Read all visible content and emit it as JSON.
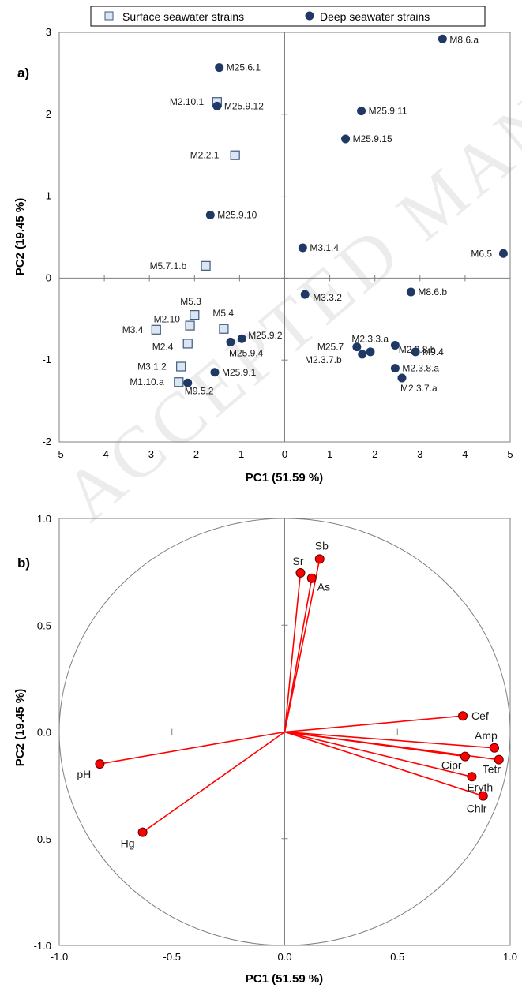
{
  "watermark": "ACCEPTED MANUSCRIPT",
  "colors": {
    "surface_fill": "#dce6f2",
    "surface_stroke": "#3d5a80",
    "deep_fill": "#1f3864",
    "vector": "#ff0000",
    "axis": "#7f7f7f"
  },
  "chart_data": [
    {
      "type": "scatter",
      "panel_label": "a)",
      "xlabel": "PC1 (51.59 %)",
      "ylabel": "PC2 (19.45 %)",
      "xlim": [
        -5,
        5
      ],
      "ylim": [
        -2,
        3
      ],
      "xticks": [
        "-5",
        "-4",
        "-3",
        "-2",
        "-1",
        "0",
        "1",
        "2",
        "3",
        "4",
        "5"
      ],
      "yticks": [
        "-2",
        "-1",
        "0",
        "1",
        "2",
        "3"
      ],
      "legend_position": "top",
      "series": [
        {
          "name": "Surface seawater strains",
          "marker": "square",
          "points": [
            {
              "label": "M2.10.1",
              "x": -1.5,
              "y": 2.15
            },
            {
              "label": "M2.2.1",
              "x": -1.1,
              "y": 1.5
            },
            {
              "label": "M5.7.1.b",
              "x": -1.75,
              "y": 0.15
            },
            {
              "label": "M5.3",
              "x": -2.0,
              "y": -0.45
            },
            {
              "label": "M2.10",
              "x": -2.1,
              "y": -0.58
            },
            {
              "label": "M5.4",
              "x": -1.35,
              "y": -0.62
            },
            {
              "label": "M3.4",
              "x": -2.85,
              "y": -0.63
            },
            {
              "label": "M2.4",
              "x": -2.15,
              "y": -0.8
            },
            {
              "label": "M3.1.2",
              "x": -2.3,
              "y": -1.08
            },
            {
              "label": "M1.10.a",
              "x": -2.35,
              "y": -1.27
            }
          ]
        },
        {
          "name": "Deep seawater strains",
          "marker": "circle",
          "points": [
            {
              "label": "M8.6.a",
              "x": 3.5,
              "y": 2.92
            },
            {
              "label": "M25.6.1",
              "x": -1.45,
              "y": 2.57
            },
            {
              "label": "M25.9.12",
              "x": -1.5,
              "y": 2.1
            },
            {
              "label": "M25.9.11",
              "x": 1.7,
              "y": 2.04
            },
            {
              "label": "M25.9.15",
              "x": 1.35,
              "y": 1.7
            },
            {
              "label": "M25.9.10",
              "x": -1.65,
              "y": 0.77
            },
            {
              "label": "M3.1.4",
              "x": 0.4,
              "y": 0.37
            },
            {
              "label": "M6.5",
              "x": 4.85,
              "y": 0.3
            },
            {
              "label": "M3.3.2",
              "x": 0.45,
              "y": -0.2
            },
            {
              "label": "M8.6.b",
              "x": 2.8,
              "y": -0.17
            },
            {
              "label": "M25.9.2",
              "x": -0.95,
              "y": -0.74
            },
            {
              "label": "M25.9.4",
              "x": -1.2,
              "y": -0.78
            },
            {
              "label": "M2.3.3.a",
              "x": 2.45,
              "y": -0.82
            },
            {
              "label": "M25.7",
              "x": 1.6,
              "y": -0.84
            },
            {
              "label": "M2.3.7.b",
              "x": 1.9,
              "y": -0.9
            },
            {
              "label": "M2.3.8.b",
              "x": 1.72,
              "y": -0.93
            },
            {
              "label": "M9.4",
              "x": 2.9,
              "y": -0.9
            },
            {
              "label": "M2.3.8.a",
              "x": 2.45,
              "y": -1.1
            },
            {
              "label": "M2.3.7.a",
              "x": 2.6,
              "y": -1.22
            },
            {
              "label": "M25.9.1",
              "x": -1.55,
              "y": -1.15
            },
            {
              "label": "M9.5.2",
              "x": -2.15,
              "y": -1.28
            }
          ]
        }
      ]
    },
    {
      "type": "scatter",
      "subtype": "correlation-circle",
      "panel_label": "b)",
      "xlabel": "PC1 (51.59 %)",
      "ylabel": "PC2 (19.45 %)",
      "xlim": [
        -1.0,
        1.0
      ],
      "ylim": [
        -1.0,
        1.0
      ],
      "xticks": [
        "-1.0",
        "-0.5",
        "0.0",
        "0.5",
        "1.0"
      ],
      "yticks": [
        "-1.0",
        "-0.5",
        "0.0",
        "0.5",
        "1.0"
      ],
      "vectors": [
        {
          "label": "Sb",
          "x": 0.155,
          "y": 0.81
        },
        {
          "label": "Sr",
          "x": 0.07,
          "y": 0.745
        },
        {
          "label": "As",
          "x": 0.12,
          "y": 0.72
        },
        {
          "label": "Cef",
          "x": 0.79,
          "y": 0.075
        },
        {
          "label": "Amp",
          "x": 0.93,
          "y": -0.075
        },
        {
          "label": "Cipr",
          "x": 0.8,
          "y": -0.115
        },
        {
          "label": "Tetr",
          "x": 0.95,
          "y": -0.13
        },
        {
          "label": "Eryth",
          "x": 0.83,
          "y": -0.21
        },
        {
          "label": "Chlr",
          "x": 0.88,
          "y": -0.3
        },
        {
          "label": "pH",
          "x": -0.82,
          "y": -0.15
        },
        {
          "label": "Hg",
          "x": -0.63,
          "y": -0.47
        }
      ]
    }
  ]
}
